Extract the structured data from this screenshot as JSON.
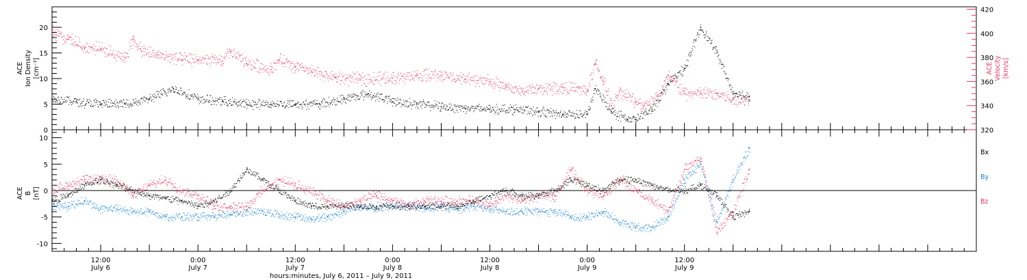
{
  "chart_data": [
    {
      "type": "scatter",
      "panel": "top",
      "ylabel_left": [
        "ACE",
        "Ion Density",
        "[cm⁻³]"
      ],
      "ylabel_right": [
        "ACE",
        "Velocity",
        "[km/s]"
      ],
      "ylim_left": [
        0,
        24
      ],
      "ylim_right": [
        320,
        422
      ],
      "yticks_left": [
        "0",
        "5",
        "10",
        "15",
        "20"
      ],
      "yticks_right": [
        "320",
        "340",
        "360",
        "380",
        "400",
        "420"
      ],
      "colors": {
        "density": "#000000",
        "velocity": "#e8335e"
      },
      "series": [
        {
          "axis": "left",
          "x_hours": [
            0,
            3,
            6,
            9,
            12,
            15,
            18,
            21,
            24,
            27,
            30,
            33,
            36,
            39,
            42,
            45,
            48,
            51,
            54,
            57,
            60,
            63,
            66,
            67,
            69,
            71,
            72,
            74,
            76,
            78,
            80,
            82,
            84,
            86
          ],
          "values": [
            6,
            5.5,
            5,
            5,
            6,
            8,
            6,
            5.5,
            5,
            5,
            5,
            5,
            6,
            7,
            5.5,
            5,
            4.5,
            4.2,
            4,
            4,
            3.5,
            3,
            3,
            8,
            3.5,
            2,
            2,
            4,
            9,
            12,
            20,
            15,
            7,
            6.5
          ]
        },
        {
          "axis": "right",
          "x_hours": [
            0,
            2,
            4,
            6,
            9,
            10,
            11,
            13,
            16,
            18,
            21,
            22,
            24,
            27,
            28,
            30,
            32,
            35,
            38,
            42,
            45,
            48,
            51,
            54,
            56,
            58,
            60,
            63,
            66,
            67,
            68,
            69,
            70,
            72,
            73,
            75,
            76,
            78,
            80,
            82,
            84,
            86
          ],
          "values": [
            400,
            395,
            388,
            387,
            380,
            395,
            385,
            382,
            378,
            378,
            377,
            385,
            375,
            370,
            378,
            372,
            368,
            363,
            362,
            363,
            365,
            365,
            362,
            360,
            355,
            352,
            354,
            355,
            352,
            375,
            360,
            340,
            352,
            343,
            340,
            350,
            365,
            350,
            350,
            350,
            345,
            345
          ]
        }
      ]
    },
    {
      "type": "scatter",
      "panel": "bottom",
      "ylabel": [
        "ACE",
        "B",
        "[nT]"
      ],
      "ylim": [
        -11.5,
        11.5
      ],
      "yticks": [
        "-10",
        "-5",
        "0",
        "5",
        "10"
      ],
      "legend": [
        "Bx",
        "By",
        "Bz"
      ],
      "colors": {
        "Bx": "#000000",
        "By": "#1580d8",
        "Bz": "#e8335e"
      },
      "series": [
        {
          "name": "Bx",
          "x_hours": [
            0,
            2,
            4,
            6,
            8,
            10,
            12,
            14,
            16,
            18,
            20,
            22,
            24,
            26,
            28,
            30,
            32,
            34,
            36,
            38,
            40,
            42,
            44,
            46,
            48,
            50,
            52,
            54,
            56,
            58,
            60,
            62,
            64,
            66,
            68,
            70,
            72,
            74,
            76,
            78,
            80,
            82,
            84,
            86
          ],
          "values": [
            -2,
            -1,
            1,
            2,
            1,
            0,
            -1,
            -1.5,
            -2,
            -3,
            -2,
            0,
            4,
            2,
            0,
            -2,
            -3,
            -3,
            -3,
            -3,
            -3,
            -3,
            -3,
            -3,
            -3,
            -3,
            -2,
            -1,
            0,
            -1,
            -1,
            0,
            2,
            1,
            0,
            2,
            2,
            1,
            0,
            0,
            1,
            -1,
            -5,
            -4
          ]
        },
        {
          "name": "By",
          "x_hours": [
            0,
            2,
            4,
            6,
            8,
            10,
            12,
            14,
            16,
            18,
            20,
            22,
            24,
            26,
            28,
            30,
            32,
            34,
            36,
            38,
            40,
            42,
            44,
            46,
            48,
            50,
            52,
            54,
            56,
            58,
            60,
            62,
            64,
            66,
            68,
            70,
            72,
            74,
            76,
            78,
            80,
            82,
            84,
            86
          ],
          "values": [
            -3,
            -3,
            -2,
            -3.5,
            -3.5,
            -4,
            -4,
            -5,
            -5,
            -5,
            -5,
            -4.5,
            -4,
            -4,
            -4.5,
            -5,
            -5.5,
            -5,
            -4,
            -3,
            -3.5,
            -3,
            -3,
            -3.5,
            -3,
            -3.5,
            -3,
            -3.5,
            -4,
            -4,
            -4,
            -4,
            -5,
            -5,
            -4,
            -6,
            -7,
            -7,
            -5,
            2,
            5,
            -6,
            2,
            8
          ]
        },
        {
          "name": "Bz",
          "x_hours": [
            0,
            2,
            4,
            6,
            8,
            10,
            12,
            14,
            16,
            18,
            20,
            22,
            24,
            26,
            28,
            30,
            32,
            34,
            36,
            38,
            40,
            42,
            44,
            46,
            48,
            50,
            52,
            54,
            56,
            58,
            60,
            62,
            64,
            66,
            68,
            70,
            72,
            74,
            76,
            78,
            80,
            82,
            84,
            86
          ],
          "values": [
            0,
            1,
            2,
            2,
            2,
            -1,
            1,
            2,
            0,
            -1,
            -3,
            -3,
            -3,
            0,
            2,
            1,
            0,
            -2,
            -3,
            -2,
            -1,
            -2,
            -3,
            -2,
            -2,
            -2,
            -2,
            -3,
            -1,
            -2,
            -1,
            -1,
            4,
            0,
            -1,
            2,
            0,
            -2,
            -4,
            4,
            6,
            -8,
            -4,
            4
          ]
        }
      ]
    }
  ],
  "x_axis": {
    "range_hours": [
      0,
      114
    ],
    "label": "hours:minutes,  July  6, 2011 – July  9, 2011",
    "ticks": [
      {
        "hours": 6,
        "time": "12:00",
        "date": "July 6"
      },
      {
        "hours": 18,
        "time": "0:00",
        "date": "July 7"
      },
      {
        "hours": 30,
        "time": "12:00",
        "date": "July 7"
      },
      {
        "hours": 42,
        "time": "0:00",
        "date": "July 8"
      },
      {
        "hours": 54,
        "time": "12:00",
        "date": "July 8"
      },
      {
        "hours": 66,
        "time": "0:00",
        "date": "July 9"
      },
      {
        "hours": 78,
        "time": "12:00",
        "date": "July 9"
      }
    ]
  }
}
